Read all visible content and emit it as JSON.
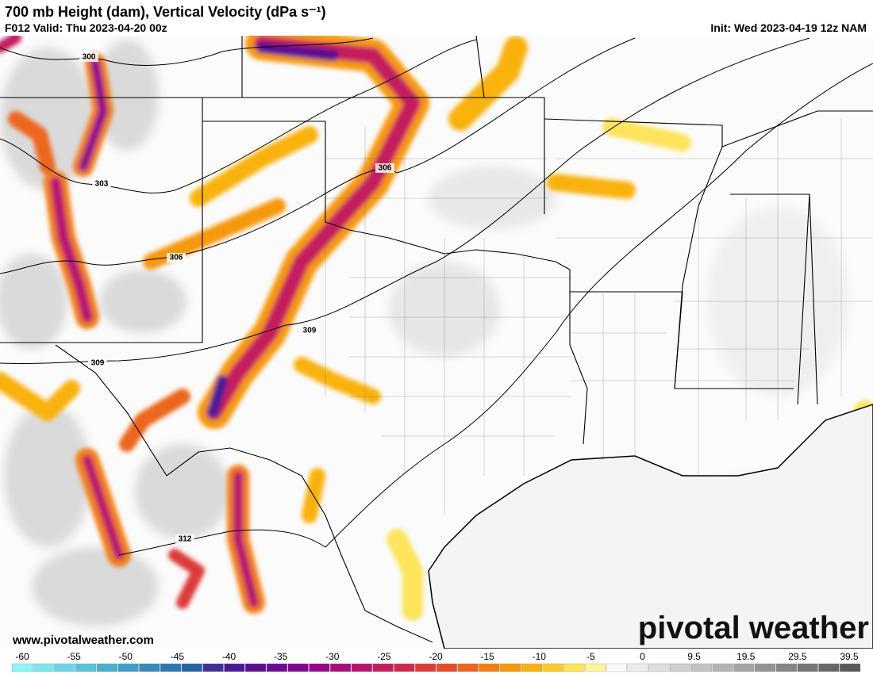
{
  "header": {
    "title": "700 mb Height (dam), Vertical Velocity (dPa s⁻¹)",
    "valid": "F012 Valid: Thu 2023-04-20 00z",
    "init": "Init: Wed 2023-04-19 12z NAM"
  },
  "contour_labels": [
    "300",
    "303",
    "306",
    "306",
    "309",
    "309",
    "312"
  ],
  "website": "www.pivotalweather.com",
  "logo": "pivotal weather",
  "colorbar": {
    "labels": [
      -60,
      -55,
      -50,
      -45,
      -40,
      -35,
      -30,
      -25,
      -20,
      -15,
      -10,
      -5,
      0,
      9.5,
      19.5,
      29.5,
      39.5
    ],
    "colors": [
      "#8cf5f5",
      "#7ae6ee",
      "#68d6e6",
      "#58c4dc",
      "#4ab1d2",
      "#3e9dc8",
      "#348abd",
      "#2c77b0",
      "#2664a3",
      "#3f2f98",
      "#4b1a94",
      "#5a0f92",
      "#6c0a92",
      "#800890",
      "#95088a",
      "#a80c7f",
      "#b81470",
      "#c51c5e",
      "#d12a4c",
      "#dc3b3a",
      "#e55029",
      "#ec661c",
      "#f27e12",
      "#f6980c",
      "#f9b20e",
      "#fbcb2a",
      "#fde45a",
      "#fff59a",
      "#fafafa",
      "#ececec",
      "#dedede",
      "#d0d0d0",
      "#c2c2c2",
      "#b3b3b3",
      "#a4a4a4",
      "#959595",
      "#868686",
      "#777777",
      "#686868",
      "#595959"
    ]
  }
}
